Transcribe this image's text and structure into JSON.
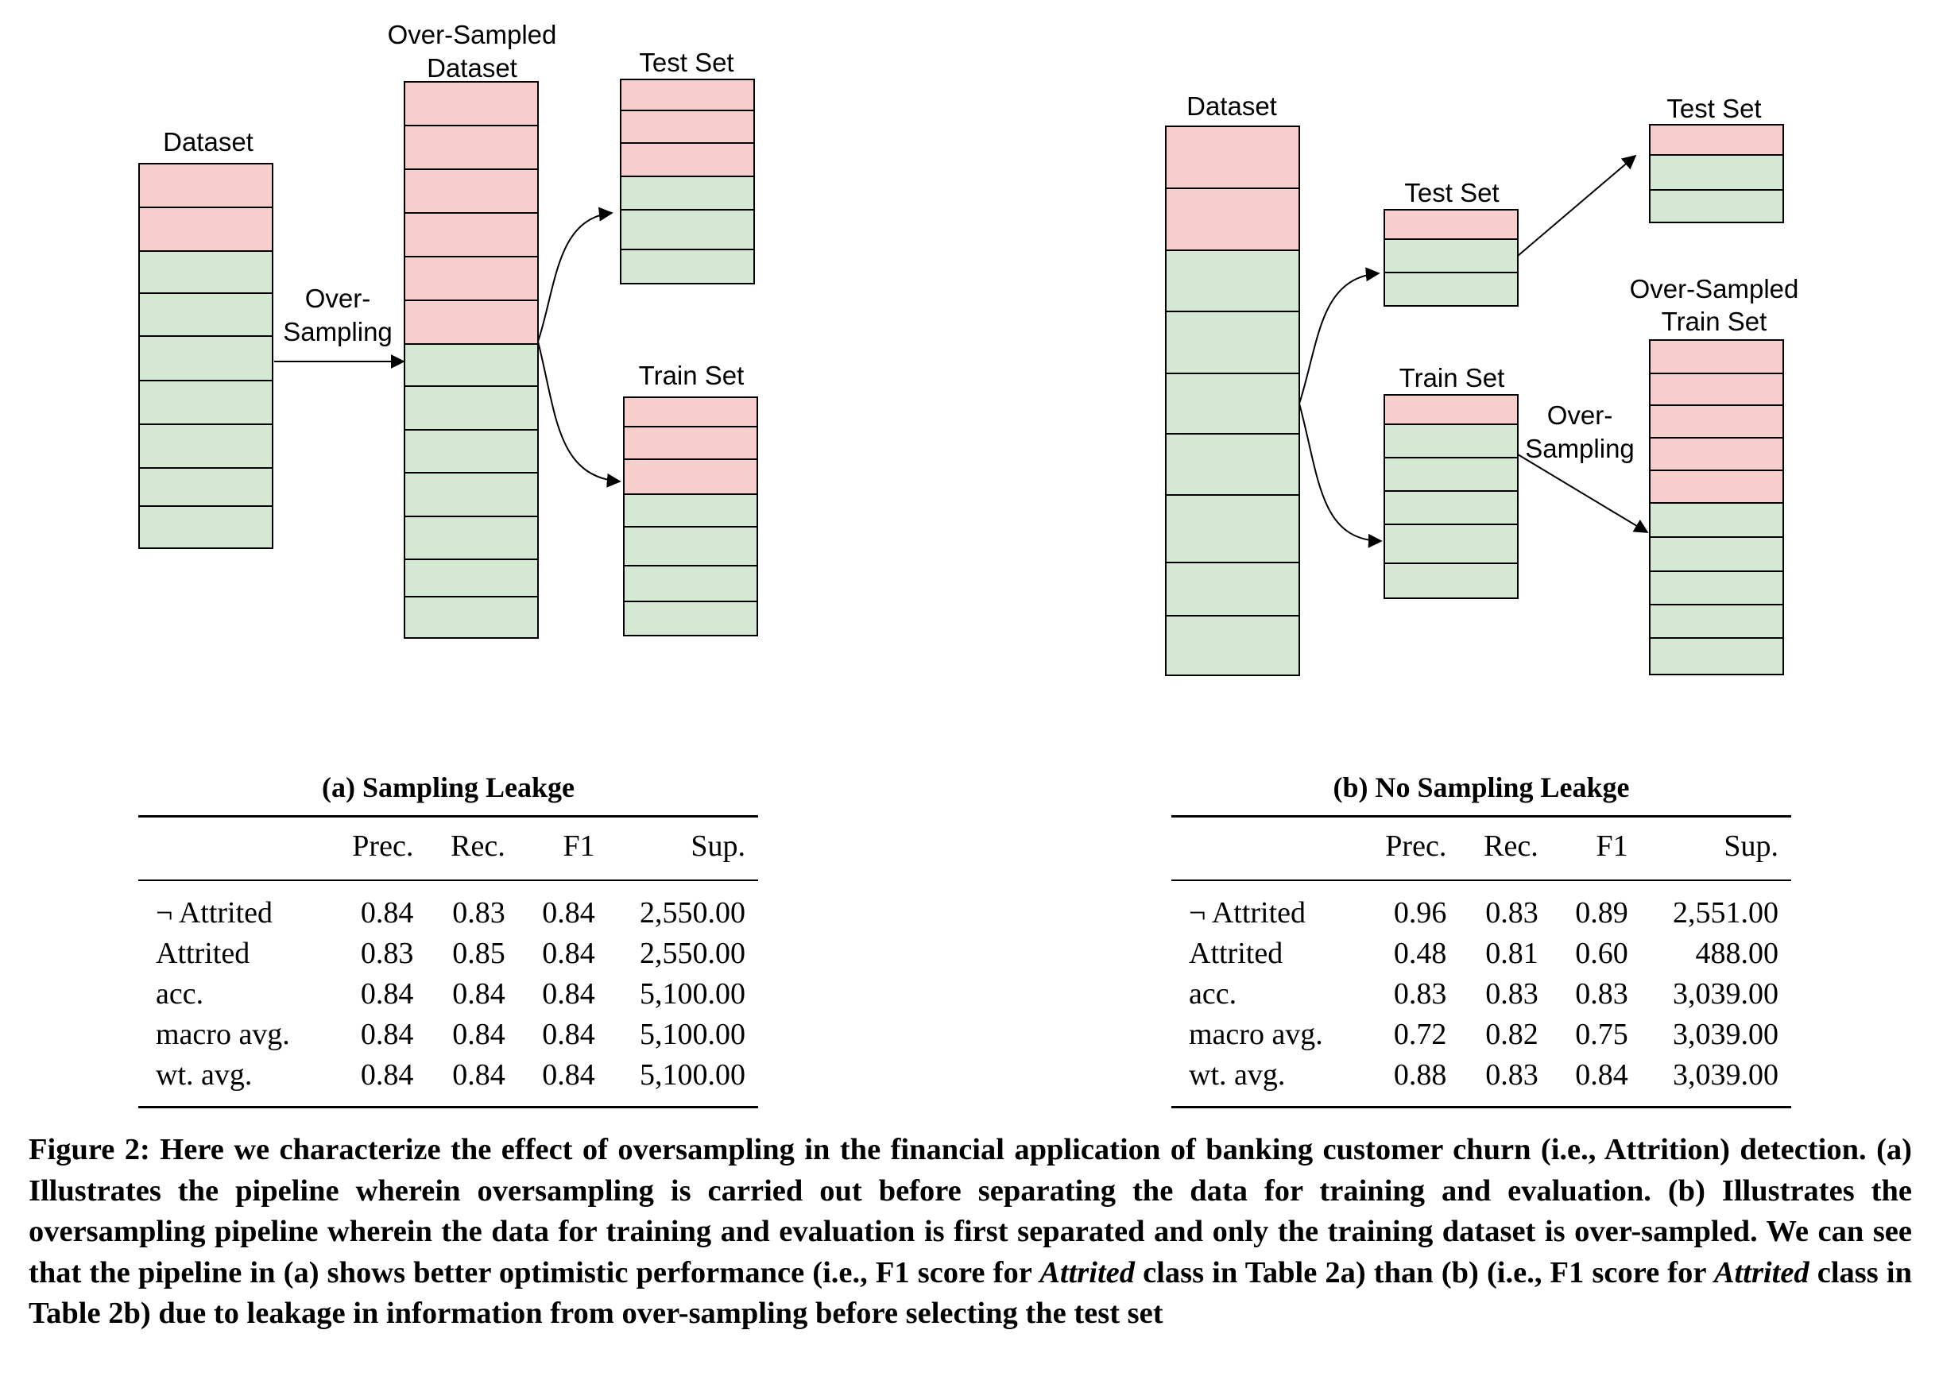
{
  "diagram_a": {
    "dataset_label": "Dataset",
    "oversampled_label": [
      "Over-Sampled",
      "Dataset"
    ],
    "oversampling_label": [
      "Over-",
      "Sampling"
    ],
    "test_label": "Test Set",
    "train_label": "Train Set"
  },
  "diagram_b": {
    "dataset_label": "Dataset",
    "test_label_1": "Test Set",
    "train_label": "Train Set",
    "test_label_2": "Test Set",
    "oversampled_label": [
      "Over-Sampled",
      "Train Set"
    ],
    "oversampling_label": [
      "Over-",
      "Sampling"
    ]
  },
  "colors": {
    "minority": "#f8cecc",
    "majority": "#d5e8d4",
    "stroke": "#000000"
  },
  "table_a": {
    "caption": "(a) Sampling Leakge",
    "headers": [
      "",
      "Prec.",
      "Rec.",
      "F1",
      "Sup."
    ],
    "rows": [
      [
        "¬ Attrited",
        "0.84",
        "0.83",
        "0.84",
        "2,550.00"
      ],
      [
        "Attrited",
        "0.83",
        "0.85",
        "0.84",
        "2,550.00"
      ],
      [
        "acc.",
        "0.84",
        "0.84",
        "0.84",
        "5,100.00"
      ],
      [
        "macro avg.",
        "0.84",
        "0.84",
        "0.84",
        "5,100.00"
      ],
      [
        "wt. avg.",
        "0.84",
        "0.84",
        "0.84",
        "5,100.00"
      ]
    ]
  },
  "table_b": {
    "caption": "(b) No Sampling Leakge",
    "headers": [
      "",
      "Prec.",
      "Rec.",
      "F1",
      "Sup."
    ],
    "rows": [
      [
        "¬ Attrited",
        "0.96",
        "0.83",
        "0.89",
        "2,551.00"
      ],
      [
        "Attrited",
        "0.48",
        "0.81",
        "0.60",
        "488.00"
      ],
      [
        "acc.",
        "0.83",
        "0.83",
        "0.83",
        "3,039.00"
      ],
      [
        "macro avg.",
        "0.72",
        "0.82",
        "0.75",
        "3,039.00"
      ],
      [
        "wt. avg.",
        "0.88",
        "0.83",
        "0.84",
        "3,039.00"
      ]
    ]
  },
  "caption": {
    "p1": "Figure 2: Here we characterize the effect of oversampling in the financial application of banking customer churn (i.e., Attrition) detection. (a) Illustrates the pipeline wherein oversampling is carried out before separating the data for training and evaluation. (b) Illustrates the oversampling pipeline wherein the data for training and evaluation is first separated and only the training dataset is over-sampled. We can see that the pipeline in (a) shows better optimistic performance (i.e., F1 score for ",
    "em1": "Attrited",
    "p2": " class in Table 2a) than (b) (i.e., F1 score for ",
    "em2": "Attrited",
    "p3": " class in Table 2b) due to leakage in information from over-sampling before selecting the test set"
  }
}
